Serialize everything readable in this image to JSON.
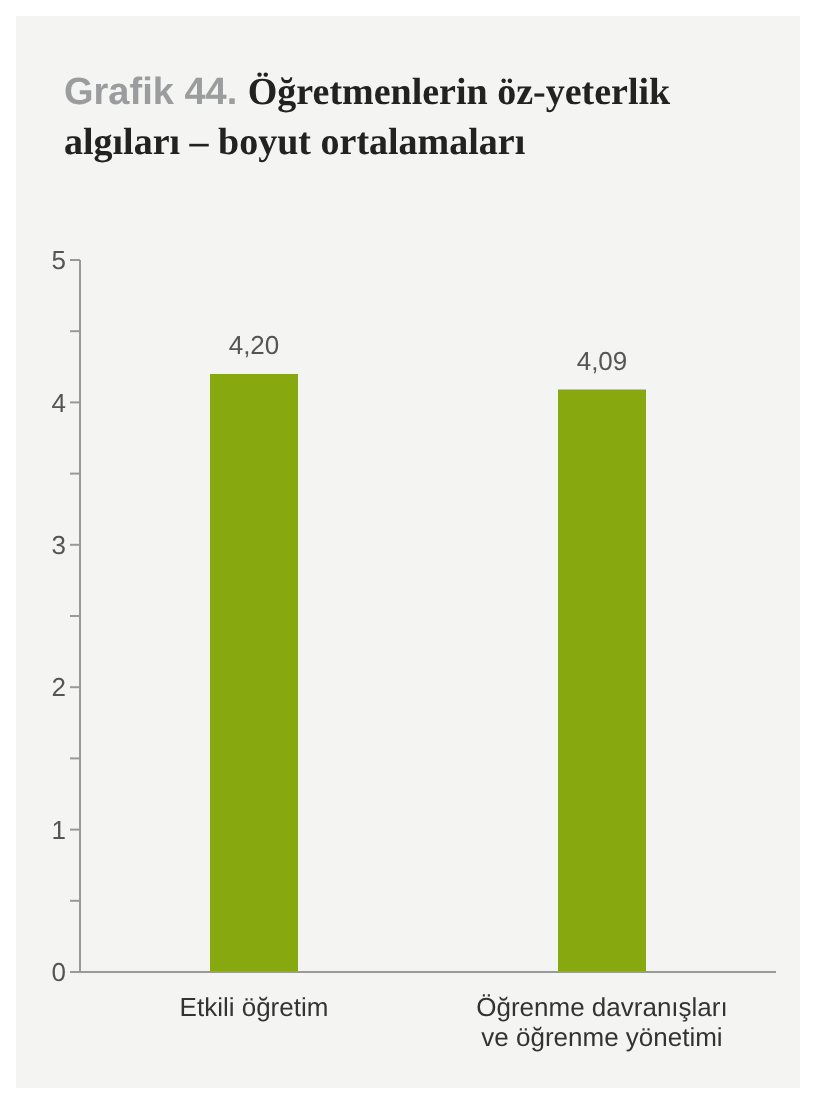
{
  "chart_data": {
    "type": "bar",
    "title": "Grafik 44. Öğretmenlerin öz-yeterlik algıları – boyut ortalamaları",
    "categories": [
      "Etkili öğretim",
      "Öğrenme davranışları ve öğrenme yönetimi"
    ],
    "values": [
      4.2,
      4.09
    ],
    "color": "#87a80f",
    "value_labels": [
      "4,20",
      "4,09"
    ],
    "ylim": [
      0,
      5
    ],
    "yticks": [
      0,
      {
        "value": 0.5,
        "label": null
      },
      1,
      {
        "value": 1.5,
        "label": null
      },
      2,
      {
        "value": 2.5,
        "label": null
      },
      3,
      {
        "value": 3.5,
        "label": null
      },
      4,
      {
        "value": 4.5,
        "label": null
      },
      5
    ],
    "grid": false
  }
}
